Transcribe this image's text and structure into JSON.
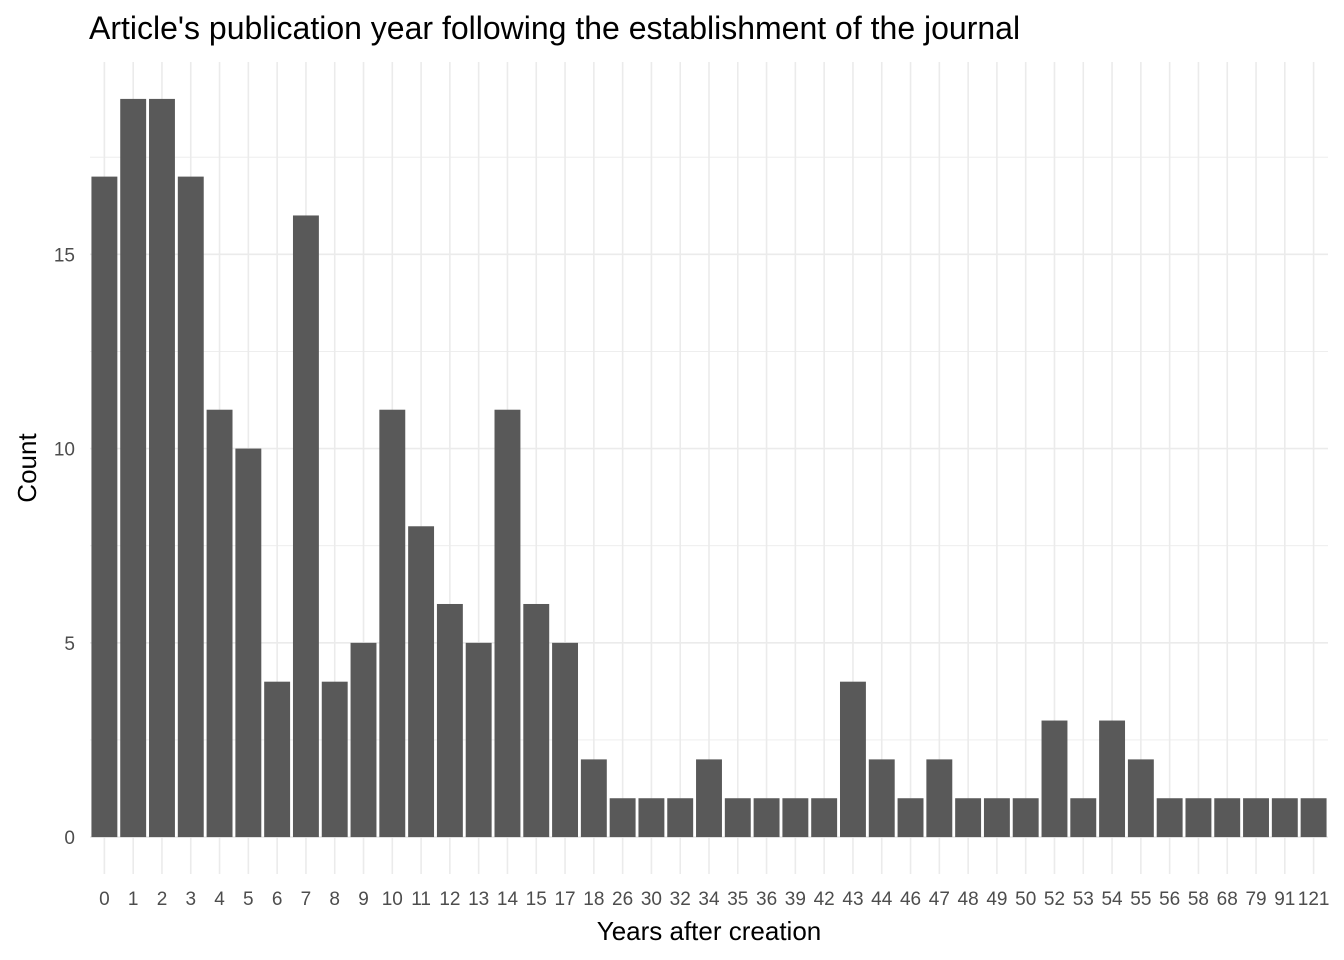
{
  "chart_data": {
    "type": "bar",
    "title": "Article's publication year following the establishment of the journal",
    "xlabel": "Years after creation",
    "ylabel": "Count",
    "categories": [
      "0",
      "1",
      "2",
      "3",
      "4",
      "5",
      "6",
      "7",
      "8",
      "9",
      "10",
      "11",
      "12",
      "13",
      "14",
      "15",
      "17",
      "18",
      "26",
      "30",
      "32",
      "34",
      "35",
      "36",
      "39",
      "42",
      "43",
      "44",
      "46",
      "47",
      "48",
      "49",
      "50",
      "52",
      "53",
      "54",
      "55",
      "56",
      "58",
      "68",
      "79",
      "91",
      "121"
    ],
    "values": [
      17,
      19,
      19,
      17,
      11,
      10,
      4,
      16,
      4,
      5,
      11,
      8,
      6,
      5,
      11,
      6,
      5,
      2,
      1,
      1,
      1,
      2,
      1,
      1,
      1,
      1,
      4,
      2,
      1,
      2,
      1,
      1,
      1,
      3,
      1,
      3,
      2,
      1,
      1,
      1,
      1,
      1,
      1
    ],
    "yticks": [
      0,
      5,
      10,
      15
    ],
    "ylim": [
      -0.95,
      19.95
    ],
    "bar_color": "#595959",
    "grid_color": "#ebebeb",
    "grid": true,
    "legend": "none"
  }
}
